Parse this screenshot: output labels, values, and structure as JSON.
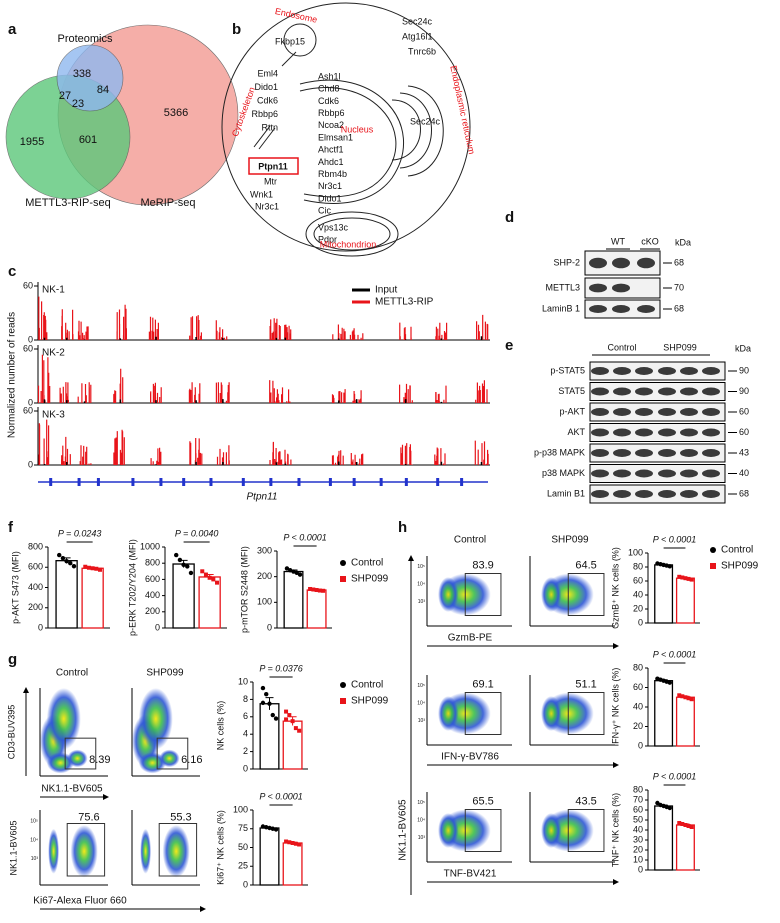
{
  "panel_labels": [
    "a",
    "b",
    "c",
    "d",
    "e",
    "f",
    "g",
    "h"
  ],
  "venn": {
    "sets": [
      "Proteomics",
      "METTL3-RIP-seq",
      "MeRIP-seq"
    ],
    "counts": [
      338,
      84,
      27,
      23,
      1955,
      601,
      5366
    ]
  },
  "diagram": {
    "compartments": [
      "Endosome",
      "Cytoskeleton",
      "Nucleus",
      "Endoplasmic reticulum",
      "Mitochondrion"
    ],
    "genes": {
      "endosome": [
        "Fkbp15"
      ],
      "top": [
        "Sec24c",
        "Atg16l1",
        "Tnrc6b"
      ],
      "cytoskeleton": [
        "Eml4",
        "Dido1",
        "Cdk6",
        "Rbbp6",
        "Rttn"
      ],
      "nucleus": [
        "Ash1l",
        "Chd8",
        "Cdk6",
        "Rbbp6",
        "Ncoa2",
        "Elmsan1",
        "Ahctf1",
        "Ahdc1",
        "Rbm4b",
        "Nr3c1",
        "Dido1",
        "Cic"
      ],
      "highlight": "Ptpn11",
      "cytoplasm": [
        "Mtr",
        "Wnk1",
        "Nr3c1"
      ],
      "er": [
        "Sec24c"
      ],
      "mitochondrion": [
        "Vps13c",
        "Pdpr"
      ]
    }
  },
  "tracks": {
    "y_label": "Normalized number of reads",
    "legend": [
      "Input",
      "METTL3-RIP"
    ],
    "samples": [
      "NK-1",
      "NK-2",
      "NK-3"
    ],
    "yticks": [
      0,
      60
    ],
    "gene": "Ptpn11"
  },
  "blot_d": {
    "lanes": [
      "WT",
      "cKO"
    ],
    "unit": "kDa",
    "rows": [
      {
        "label": "SHP-2",
        "kda": 68
      },
      {
        "label": "METTL3",
        "kda": 70
      },
      {
        "label": "LaminB 1",
        "kda": 68
      }
    ]
  },
  "blot_e": {
    "lanes": [
      "Control",
      "SHP099"
    ],
    "unit": "kDa",
    "rows": [
      {
        "label": "p-STAT5",
        "kda": 90
      },
      {
        "label": "STAT5",
        "kda": 90
      },
      {
        "label": "p-AKT",
        "kda": 60
      },
      {
        "label": "AKT",
        "kda": 60
      },
      {
        "label": "p-p38 MAPK",
        "kda": 43
      },
      {
        "label": "p38 MAPK",
        "kda": 40
      },
      {
        "label": "Lamin B1",
        "kda": 68
      }
    ]
  },
  "flow": {
    "columns": [
      "Control",
      "SHP099"
    ],
    "axis_ticks": [
      "10⁵",
      "10⁴",
      "10³"
    ],
    "g": [
      {
        "y_label": "CD3-BUV395",
        "x_label": "NK1.1-BV605",
        "gates": [
          8.39,
          6.16
        ]
      },
      {
        "y_label": "NK1.1-BV605",
        "x_label": "Ki67-Alexa Fluor 660",
        "gates": [
          75.6,
          55.3
        ]
      }
    ],
    "h": {
      "y_label": "NK1.1-BV605",
      "rows": [
        {
          "x_label": "GzmB-PE",
          "gates": [
            83.9,
            64.5
          ]
        },
        {
          "x_label": "IFN-γ-BV786",
          "gates": [
            69.1,
            51.1
          ]
        },
        {
          "x_label": "TNF-BV421",
          "gates": [
            65.5,
            43.5
          ]
        }
      ]
    }
  },
  "chart_data": [
    {
      "type": "bar",
      "y_label": "p-AKT S473 (MFI)",
      "p_value": "P = 0.0243",
      "ylim": [
        0,
        800
      ],
      "yticks": [
        0,
        200,
        400,
        600,
        800
      ],
      "series": [
        {
          "name": "Control",
          "color": "#000000",
          "values": [
            665
          ],
          "errors": [
            28
          ],
          "points": [
            720,
            690,
            660,
            640,
            610
          ]
        },
        {
          "name": "SHP099",
          "color": "#e8141a",
          "values": [
            590
          ],
          "errors": [
            8
          ],
          "points": [
            605,
            595,
            590,
            585,
            575
          ]
        }
      ]
    },
    {
      "type": "bar",
      "y_label": "p-ERK T202/Y204 (MFI)",
      "p_value": "P = 0.0040",
      "ylim": [
        0,
        1000
      ],
      "yticks": [
        0,
        200,
        400,
        600,
        800,
        1000
      ],
      "series": [
        {
          "name": "Control",
          "color": "#000000",
          "values": [
            790
          ],
          "errors": [
            45
          ],
          "points": [
            900,
            840,
            780,
            760,
            680
          ]
        },
        {
          "name": "SHP099",
          "color": "#e8141a",
          "values": [
            630
          ],
          "errors": [
            30
          ],
          "points": [
            700,
            660,
            620,
            600,
            560
          ]
        }
      ]
    },
    {
      "type": "bar",
      "y_label": "p-mTOR S2448 (MFI)",
      "p_value": "P < 0.0001",
      "ylim": [
        0,
        300
      ],
      "yticks": [
        0,
        100,
        200,
        300
      ],
      "series": [
        {
          "name": "Control",
          "color": "#000000",
          "values": [
            220
          ],
          "errors": [
            6
          ],
          "points": [
            232,
            225,
            220,
            215,
            208
          ]
        },
        {
          "name": "SHP099",
          "color": "#e8141a",
          "values": [
            148
          ],
          "errors": [
            2
          ],
          "points": [
            152,
            150,
            148,
            146,
            145
          ]
        }
      ]
    },
    {
      "type": "bar",
      "y_label": "NK cells (%)",
      "p_value": "P = 0.0376",
      "ylim": [
        0,
        10
      ],
      "yticks": [
        0,
        2,
        4,
        6,
        8,
        10
      ],
      "series": [
        {
          "name": "Control",
          "color": "#000000",
          "values": [
            7.5
          ],
          "errors": [
            0.7
          ],
          "points": [
            9.3,
            8.6,
            7.5,
            6.2,
            5.8,
            7.6
          ]
        },
        {
          "name": "SHP099",
          "color": "#e8141a",
          "values": [
            5.5
          ],
          "errors": [
            0.5
          ],
          "points": [
            6.6,
            6.2,
            5.5,
            4.7,
            4.4,
            5.7
          ]
        }
      ]
    },
    {
      "type": "bar",
      "y_label": "Ki67⁺ NK cells (%)",
      "p_value": "P < 0.0001",
      "ylim": [
        0,
        100
      ],
      "yticks": [
        0,
        25,
        50,
        75,
        100
      ],
      "series": [
        {
          "name": "Control",
          "color": "#000000",
          "values": [
            76
          ],
          "errors": [
            1
          ],
          "points": [
            78,
            77,
            76,
            75,
            74
          ]
        },
        {
          "name": "SHP099",
          "color": "#e8141a",
          "values": [
            56
          ],
          "errors": [
            1
          ],
          "points": [
            58,
            57,
            56,
            55,
            54
          ]
        }
      ]
    },
    {
      "type": "bar",
      "y_label": "GzmB⁺ NK cells (%)",
      "p_value": "P < 0.0001",
      "ylim": [
        0,
        100
      ],
      "yticks": [
        0,
        20,
        40,
        60,
        80,
        100
      ],
      "series": [
        {
          "name": "Control",
          "color": "#000000",
          "values": [
            83
          ],
          "errors": [
            1
          ],
          "points": [
            85,
            84,
            83,
            82,
            81
          ]
        },
        {
          "name": "SHP099",
          "color": "#e8141a",
          "values": [
            64
          ],
          "errors": [
            1
          ],
          "points": [
            66,
            65,
            64,
            63,
            62
          ]
        }
      ]
    },
    {
      "type": "bar",
      "y_label": "IFN-γ⁺ NK cells (%)",
      "p_value": "P < 0.0001",
      "ylim": [
        0,
        80
      ],
      "yticks": [
        0,
        20,
        40,
        60,
        80
      ],
      "series": [
        {
          "name": "Control",
          "color": "#000000",
          "values": [
            67
          ],
          "errors": [
            1
          ],
          "points": [
            69,
            68,
            67,
            66,
            65
          ]
        },
        {
          "name": "SHP099",
          "color": "#e8141a",
          "values": [
            50
          ],
          "errors": [
            1
          ],
          "points": [
            52,
            51,
            50,
            49,
            48
          ]
        }
      ]
    },
    {
      "type": "bar",
      "y_label": "TNF⁺ NK cells (%)",
      "p_value": "P < 0.0001",
      "ylim": [
        0,
        80
      ],
      "yticks": [
        0,
        10,
        20,
        30,
        40,
        50,
        60,
        70,
        80
      ],
      "series": [
        {
          "name": "Control",
          "color": "#000000",
          "values": [
            64
          ],
          "errors": [
            1
          ],
          "points": [
            67,
            65,
            64,
            63,
            62
          ]
        },
        {
          "name": "SHP099",
          "color": "#e8141a",
          "values": [
            45
          ],
          "errors": [
            1
          ],
          "points": [
            47,
            46,
            45,
            44,
            43
          ]
        }
      ]
    }
  ]
}
